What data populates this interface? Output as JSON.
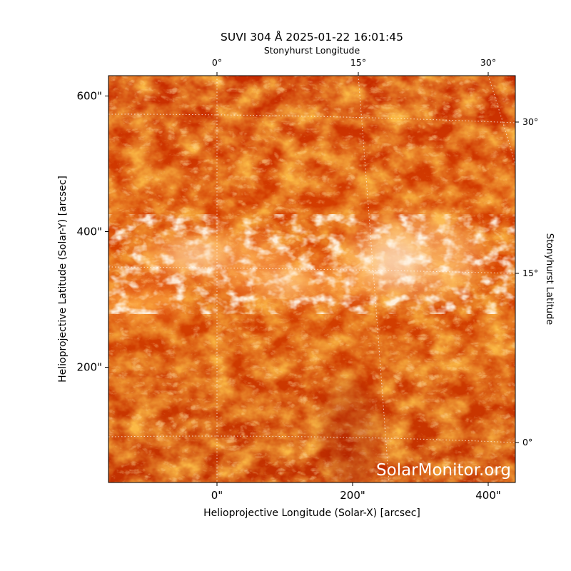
{
  "title": "SUVI 304 Å 2025-01-22 16:01:45",
  "watermark": "SolarMonitor.org",
  "axes": {
    "xlabel": "Helioprojective Longitude (Solar-X) [arcsec]",
    "ylabel": "Helioprojective Latitude (Solar-Y) [arcsec]",
    "top_label": "Stonyhurst Longitude",
    "right_label": "Stonyhurst Latitude",
    "x_range": [
      -160,
      440
    ],
    "y_range": [
      30,
      630
    ],
    "x_ticks": [
      {
        "value": 0,
        "label": "0\""
      },
      {
        "value": 200,
        "label": "200\""
      },
      {
        "value": 400,
        "label": "400\""
      }
    ],
    "y_ticks": [
      {
        "value": 200,
        "label": "200\""
      },
      {
        "value": 400,
        "label": "400\""
      },
      {
        "value": 600,
        "label": "600\""
      }
    ],
    "top_ticks": [
      {
        "value": 0,
        "label": "0°"
      },
      {
        "value": 15,
        "label": "15°"
      },
      {
        "value": 30,
        "label": "30°"
      }
    ],
    "right_ticks": [
      {
        "value": 0,
        "label": "0°"
      },
      {
        "value": 15,
        "label": "15°"
      },
      {
        "value": 30,
        "label": "30°"
      }
    ]
  },
  "colors": {
    "dark": "#b82000",
    "mid": "#e85a00",
    "bright": "#ff9a30",
    "highlight": "#fff1dc",
    "grid": "#ffffff"
  }
}
